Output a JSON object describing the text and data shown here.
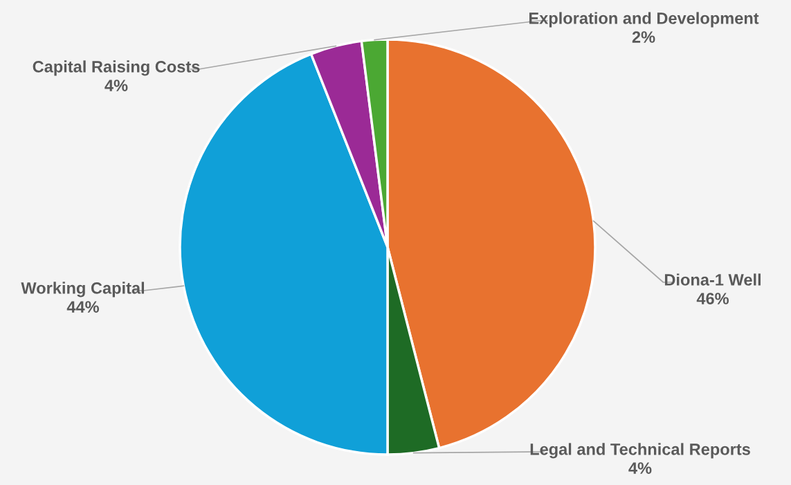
{
  "chart_data": {
    "type": "pie",
    "categories": [
      "Diona-1 Well",
      "Legal and Technical Reports",
      "Working Capital",
      "Capital Raising Costs",
      "Exploration and Development"
    ],
    "values": [
      46,
      4,
      44,
      4,
      2
    ],
    "value_labels": [
      "46%",
      "4%",
      "44%",
      "4%",
      "2%"
    ],
    "colors": [
      "#e8722f",
      "#1e6b25",
      "#10a0d8",
      "#9b2a96",
      "#4ba833"
    ],
    "legend": false
  }
}
